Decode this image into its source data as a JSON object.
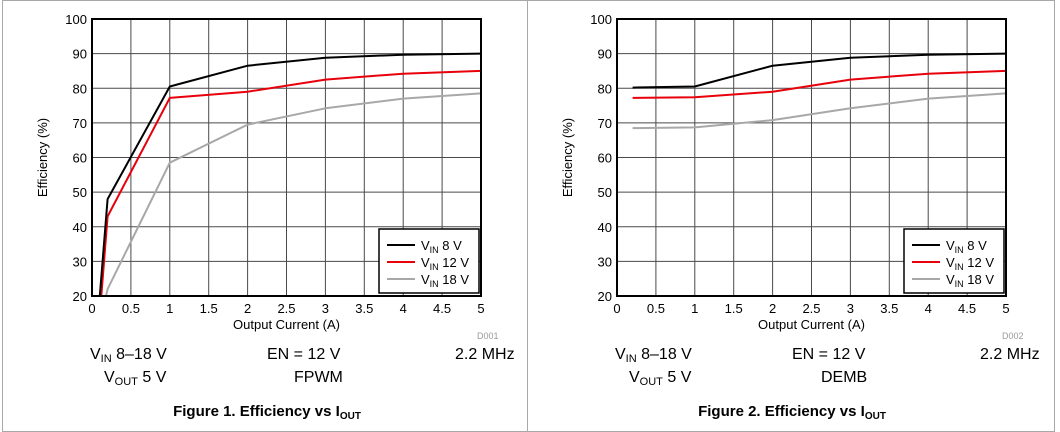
{
  "charts": [
    {
      "id": "fig1",
      "figure_title": "Figure 1. Efficiency vs I",
      "figure_title_sub": "OUT",
      "figure_code": "D001",
      "caption": {
        "vin_prefix": "V",
        "vin_sub": "IN",
        "vin_value": " 8–18 V",
        "vout_prefix": "V",
        "vout_sub": "OUT",
        "vout_value": " 5 V",
        "en": "EN = 12 V",
        "mode": "FPWM",
        "freq": "2.2 MHz"
      }
    },
    {
      "id": "fig2",
      "figure_title": "Figure 2. Efficiency vs I",
      "figure_title_sub": "OUT",
      "figure_code": "D002",
      "caption": {
        "vin_prefix": "V",
        "vin_sub": "IN",
        "vin_value": " 8–18 V",
        "vout_prefix": "V",
        "vout_sub": "OUT",
        "vout_value": " 5 V",
        "en": "EN = 12 V",
        "mode": "DEMB",
        "freq": "2.2 MHz"
      }
    }
  ],
  "chart_data": [
    {
      "type": "line",
      "title": "Figure 1. Efficiency vs IOUT",
      "xlabel": "Output Current (A)",
      "ylabel": "Efficiency (%)",
      "xlim": [
        0,
        5
      ],
      "ylim": [
        20,
        100
      ],
      "xticks": [
        "0",
        "0.5",
        "1",
        "1.5",
        "2",
        "2.5",
        "3",
        "3.5",
        "4",
        "4.5",
        "5"
      ],
      "yticks": [
        "20",
        "30",
        "40",
        "50",
        "60",
        "70",
        "80",
        "90",
        "100"
      ],
      "grid": true,
      "legend_position": "bottom-right",
      "series": [
        {
          "name": "8 V",
          "name_prefix": "V",
          "name_sub": "IN",
          "color": "#000000",
          "x": [
            0.05,
            0.1,
            0.2,
            1,
            2,
            3,
            4,
            5
          ],
          "y": [
            20,
            20,
            48,
            80.5,
            86.5,
            88.8,
            89.7,
            90
          ]
        },
        {
          "name": "12 V",
          "name_prefix": "V",
          "name_sub": "IN",
          "color": "#e8000b",
          "x": [
            0.07,
            0.12,
            0.2,
            1,
            2,
            3,
            4,
            5
          ],
          "y": [
            20,
            20,
            43,
            77.2,
            79,
            82.5,
            84.2,
            85
          ]
        },
        {
          "name": "18 V",
          "name_prefix": "V",
          "name_sub": "IN",
          "color": "#a8a8a8",
          "x": [
            0.18,
            0.2,
            1,
            2,
            3,
            4,
            5
          ],
          "y": [
            20,
            22,
            58.5,
            69.5,
            74.2,
            77,
            78.5
          ]
        }
      ]
    },
    {
      "type": "line",
      "title": "Figure 2. Efficiency vs IOUT",
      "xlabel": "Output Current (A)",
      "ylabel": "Efficiency (%)",
      "xlim": [
        0,
        5
      ],
      "ylim": [
        20,
        100
      ],
      "xticks": [
        "0",
        "0.5",
        "1",
        "1.5",
        "2",
        "2.5",
        "3",
        "3.5",
        "4",
        "4.5",
        "5"
      ],
      "yticks": [
        "20",
        "30",
        "40",
        "50",
        "60",
        "70",
        "80",
        "90",
        "100"
      ],
      "grid": true,
      "legend_position": "bottom-right",
      "series": [
        {
          "name": "8 V",
          "name_prefix": "V",
          "name_sub": "IN",
          "color": "#000000",
          "x": [
            0.2,
            1,
            2,
            3,
            4,
            5
          ],
          "y": [
            80.2,
            80.5,
            86.5,
            88.8,
            89.7,
            90
          ]
        },
        {
          "name": "12 V",
          "name_prefix": "V",
          "name_sub": "IN",
          "color": "#e8000b",
          "x": [
            0.2,
            1,
            2,
            3,
            4,
            5
          ],
          "y": [
            77.2,
            77.4,
            79,
            82.5,
            84.2,
            85
          ]
        },
        {
          "name": "18 V",
          "name_prefix": "V",
          "name_sub": "IN",
          "color": "#a8a8a8",
          "x": [
            0.2,
            1,
            2,
            3,
            4,
            5
          ],
          "y": [
            68.5,
            68.7,
            70.8,
            74.2,
            77,
            78.5
          ]
        }
      ]
    }
  ]
}
